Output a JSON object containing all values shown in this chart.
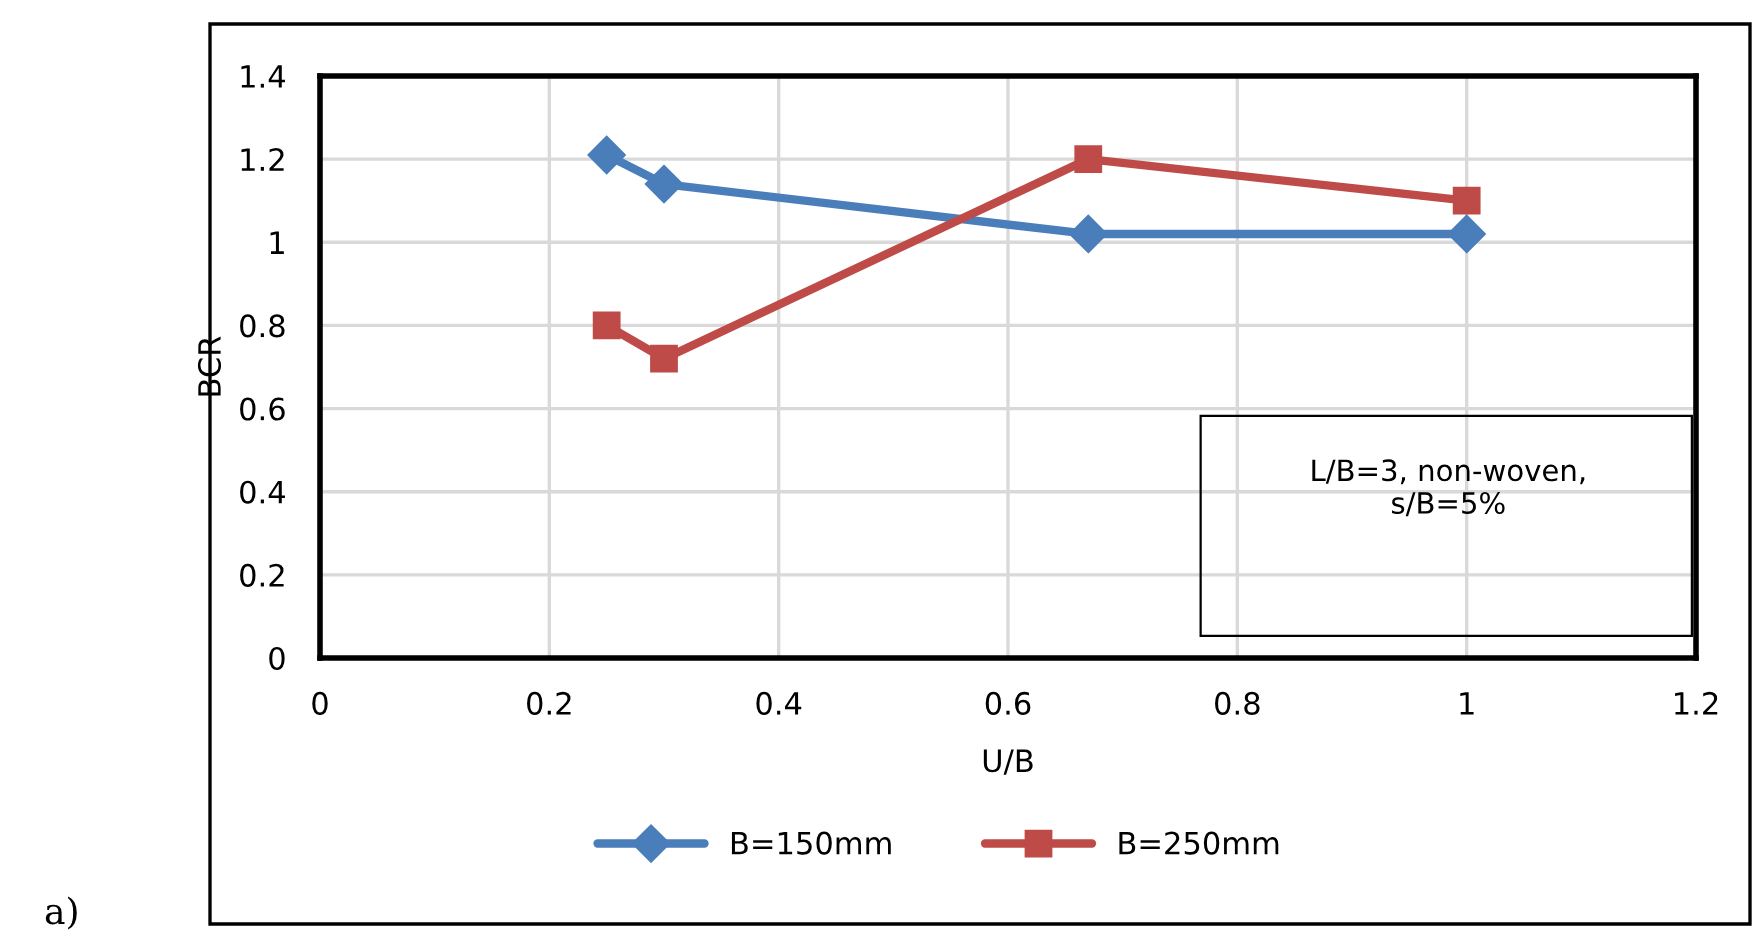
{
  "chart_data": {
    "type": "line",
    "xlabel": "U/B",
    "ylabel": "BCR",
    "series": [
      {
        "name": "B=150mm",
        "color": "#4a7ebb",
        "marker": "diamond",
        "x": [
          0.25,
          0.3,
          0.67,
          1.0
        ],
        "values": [
          1.21,
          1.14,
          1.02,
          1.02
        ]
      },
      {
        "name": "B=250mm",
        "color": "#be4b48",
        "marker": "square",
        "x": [
          0.25,
          0.3,
          0.67,
          1.0
        ],
        "values": [
          0.8,
          0.72,
          1.2,
          1.1
        ]
      }
    ],
    "xlim": [
      0,
      1.2
    ],
    "xticks": [
      0,
      0.2,
      0.4,
      0.6,
      0.8,
      1,
      1.2
    ],
    "ylim": [
      0,
      1.4
    ],
    "yticks": [
      0,
      0.2,
      0.4,
      0.6,
      0.8,
      1,
      1.2,
      1.4
    ],
    "grid": true,
    "legend": "bottom",
    "line_style": "solid",
    "annotations": [
      "L/B=3, non-woven,\ns/B=5%",
      "a)"
    ]
  }
}
